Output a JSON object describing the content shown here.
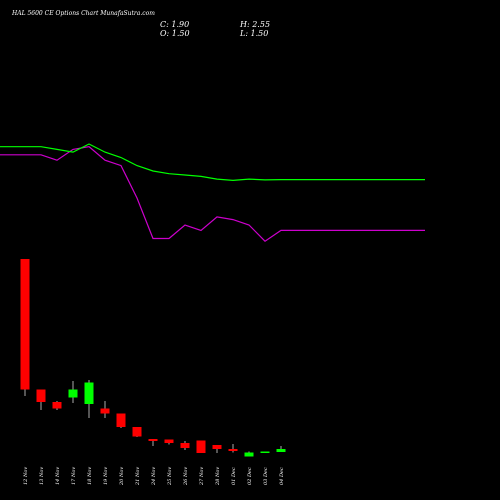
{
  "header": {
    "title": "HAL 5600  CE Options  Chart MunafaSutra.com",
    "open": "O: 1.50",
    "high": "H: 2.55",
    "low": "L: 1.50",
    "close": "C: 1.90"
  },
  "colors": {
    "background": "#000000",
    "up": "#00ff00",
    "down": "#ff0000",
    "ma_short": "#00ff00",
    "ma_long": "#cc00cc",
    "text": "#ffffff"
  },
  "chart_data": {
    "type": "candlestick",
    "title": "HAL 5600  CE Options  Chart MunafaSutra.com",
    "categories": [
      "12 Nov",
      "13 Nov",
      "14 Nov",
      "17 Nov",
      "18 Nov",
      "19 Nov",
      "20 Nov",
      "21 Nov",
      "24 Nov",
      "25 Nov",
      "26 Nov",
      "27 Nov",
      "28 Nov",
      "01 Dec",
      "02 Dec",
      "03 Dec",
      "04 Dec"
    ],
    "candles": [
      {
        "open": 129.0,
        "high": 129.0,
        "low": -8.0,
        "close": -1.5
      },
      {
        "open": -1.5,
        "high": -1.5,
        "low": -22.0,
        "close": -14.0
      },
      {
        "open": -14.0,
        "high": -13.0,
        "low": -22.0,
        "close": -20.5
      },
      {
        "open": -9.5,
        "high": 7.0,
        "low": -15.0,
        "close": -1.5
      },
      {
        "open": -16.0,
        "high": 8.0,
        "low": -30.0,
        "close": 5.5
      },
      {
        "open": -20.5,
        "high": -13.0,
        "low": -30.0,
        "close": -25.5
      },
      {
        "open": -25.5,
        "high": -25.5,
        "low": -40.0,
        "close": -39.0
      },
      {
        "open": -39.0,
        "high": -39.0,
        "low": -49.0,
        "close": -48.5
      },
      {
        "open": -51.0,
        "high": -51.0,
        "low": -58.0,
        "close": -53.0
      },
      {
        "open": -51.5,
        "high": -51.5,
        "low": -56.5,
        "close": -55.0
      },
      {
        "open": -55.0,
        "high": -53.0,
        "low": -62.0,
        "close": -60.0
      },
      {
        "open": -52.5,
        "high": -52.5,
        "low": -65.0,
        "close": -65.0
      },
      {
        "open": -57.0,
        "high": -57.0,
        "low": -65.0,
        "close": -61.0
      },
      {
        "open": -61.0,
        "high": -56.0,
        "low": -64.5,
        "close": -63.0
      },
      {
        "open": -68.5,
        "high": -63.5,
        "low": -68.5,
        "close": -64.5
      },
      {
        "open": -64.5,
        "high": -63.5,
        "low": -64.5,
        "close": -63.5
      },
      {
        "open": -64.0,
        "high": -58.0,
        "low": -64.0,
        "close": -61.0
      }
    ],
    "ma_short": [
      0.79,
      0.79,
      0.78,
      0.77,
      0.8,
      0.77,
      0.75,
      0.72,
      0.7,
      0.69,
      0.685,
      0.68,
      0.67,
      0.665,
      0.67,
      0.667,
      0.668
    ],
    "ma_long": [
      0.76,
      0.76,
      0.74,
      0.78,
      0.79,
      0.74,
      0.72,
      0.6,
      0.45,
      0.45,
      0.5,
      0.48,
      0.53,
      0.52,
      0.5,
      0.44,
      0.48
    ],
    "ylim": [
      -80,
      300
    ],
    "grid": false
  }
}
